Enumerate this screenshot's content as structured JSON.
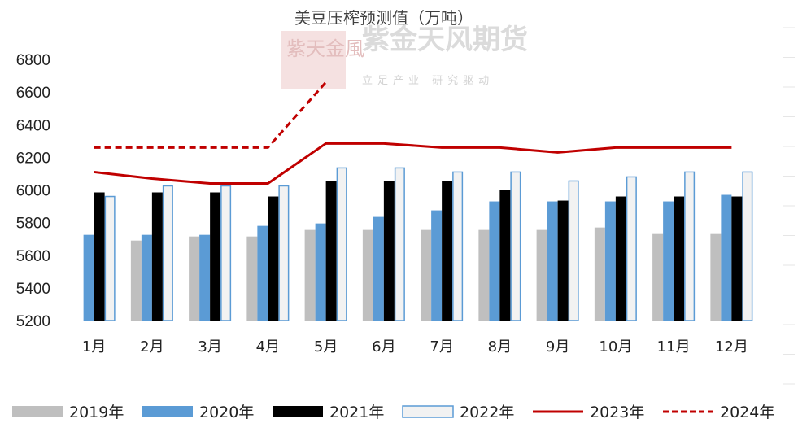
{
  "chart_data": {
    "type": "bar",
    "title": "美豆压榨预测值（万吨）",
    "categories": [
      "1月",
      "2月",
      "3月",
      "4月",
      "5月",
      "6月",
      "7月",
      "8月",
      "9月",
      "10月",
      "11月",
      "12月"
    ],
    "ylim": [
      5200,
      6800
    ],
    "yticks": [
      5200,
      5400,
      5600,
      5800,
      6000,
      6200,
      6400,
      6600,
      6800
    ],
    "grid": false,
    "legend_position": "bottom",
    "series": [
      {
        "name": "2019年",
        "type": "bar",
        "color": "#bfbfbf",
        "values": [
          null,
          5690,
          5715,
          5715,
          5755,
          5755,
          5755,
          5755,
          5755,
          5770,
          5730,
          5730
        ]
      },
      {
        "name": "2020年",
        "type": "bar",
        "color": "#5b9bd5",
        "values": [
          5725,
          5725,
          5725,
          5780,
          5795,
          5835,
          5875,
          5930,
          5930,
          5930,
          5930,
          5970
        ]
      },
      {
        "name": "2021年",
        "type": "bar",
        "color": "#000000",
        "values": [
          5985,
          5985,
          5985,
          5960,
          6055,
          6055,
          6055,
          6000,
          5935,
          5960,
          5960,
          5960
        ]
      },
      {
        "name": "2022年",
        "type": "bar",
        "color": "#f2f2f2",
        "stroke": "#5b9bd5",
        "values": [
          5960,
          6025,
          6025,
          6025,
          6135,
          6135,
          6110,
          6110,
          6055,
          6080,
          6110,
          6110
        ]
      },
      {
        "name": "2023年",
        "type": "line",
        "color": "#c00000",
        "values": [
          6110,
          6070,
          6040,
          6040,
          6285,
          6285,
          6260,
          6260,
          6230,
          6260,
          6260,
          6260
        ]
      },
      {
        "name": "2024年",
        "type": "dashed-line",
        "color": "#c00000",
        "values": [
          6260,
          6260,
          6260,
          6260,
          6660,
          null,
          null,
          null,
          null,
          null,
          null,
          null
        ]
      }
    ]
  },
  "watermark": {
    "name": "紫金天风期货",
    "slogan": "立足产业 研究驱动",
    "logo_text": "紫天金風"
  }
}
